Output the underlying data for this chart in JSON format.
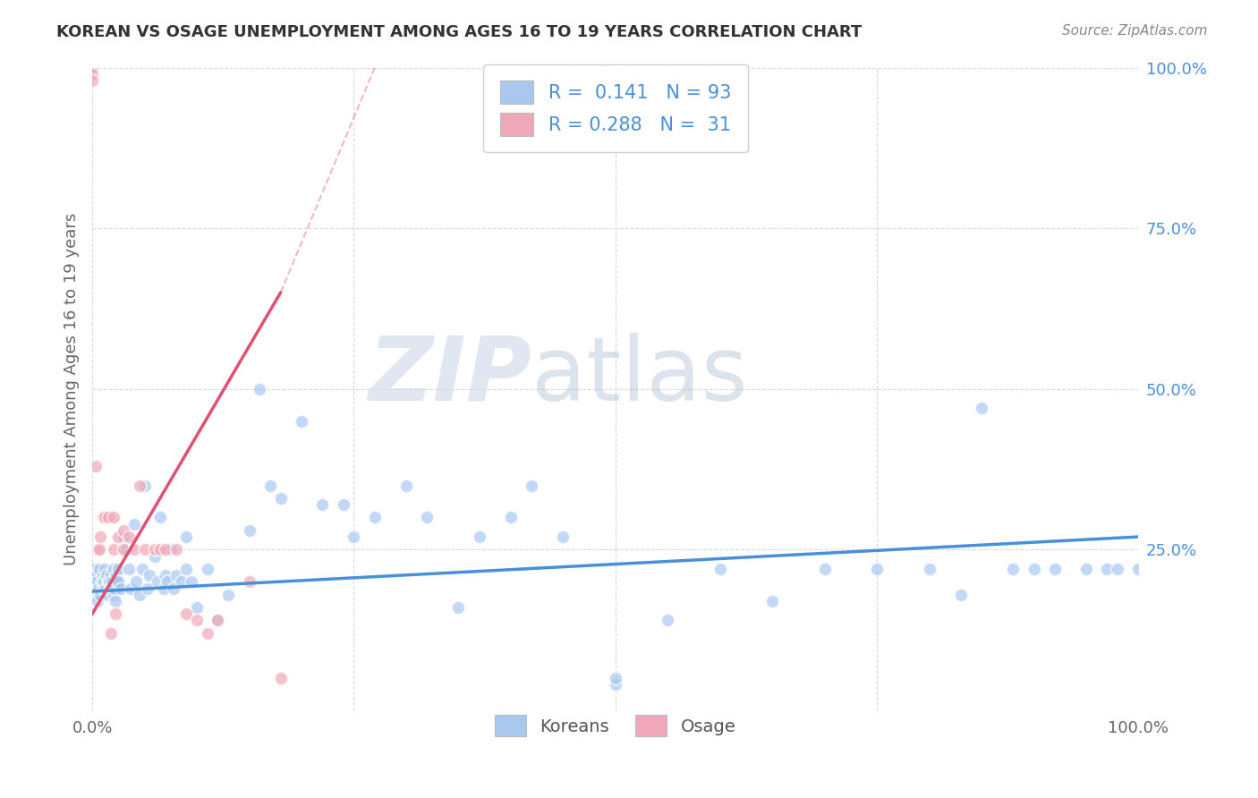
{
  "title": "KOREAN VS OSAGE UNEMPLOYMENT AMONG AGES 16 TO 19 YEARS CORRELATION CHART",
  "source": "Source: ZipAtlas.com",
  "ylabel": "Unemployment Among Ages 16 to 19 years",
  "xlabel": "",
  "xlim": [
    0,
    1.0
  ],
  "ylim": [
    0,
    1.0
  ],
  "korean_R": 0.141,
  "korean_N": 93,
  "osage_R": 0.288,
  "osage_N": 31,
  "korean_color": "#a8c8f0",
  "osage_color": "#f0a8b8",
  "korean_line_color": "#4a90d9",
  "osage_line_color": "#e05070",
  "watermark_zip": "ZIP",
  "watermark_atlas": "atlas",
  "background_color": "#ffffff",
  "grid_color": "#d8d8d8",
  "korean_x": [
    0.0,
    0.001,
    0.002,
    0.003,
    0.004,
    0.005,
    0.005,
    0.006,
    0.007,
    0.008,
    0.009,
    0.01,
    0.01,
    0.011,
    0.012,
    0.013,
    0.014,
    0.015,
    0.015,
    0.016,
    0.017,
    0.018,
    0.019,
    0.02,
    0.02,
    0.021,
    0.022,
    0.023,
    0.024,
    0.025,
    0.025,
    0.027,
    0.03,
    0.032,
    0.035,
    0.037,
    0.04,
    0.042,
    0.045,
    0.048,
    0.05,
    0.053,
    0.055,
    0.06,
    0.062,
    0.065,
    0.068,
    0.07,
    0.072,
    0.075,
    0.078,
    0.08,
    0.085,
    0.09,
    0.09,
    0.095,
    0.1,
    0.11,
    0.12,
    0.13,
    0.15,
    0.16,
    0.17,
    0.18,
    0.2,
    0.22,
    0.24,
    0.25,
    0.27,
    0.3,
    0.32,
    0.35,
    0.37,
    0.4,
    0.42,
    0.45,
    0.5,
    0.5,
    0.55,
    0.6,
    0.65,
    0.7,
    0.75,
    0.8,
    0.83,
    0.85,
    0.88,
    0.9,
    0.92,
    0.95,
    0.97,
    0.98,
    1.0
  ],
  "korean_y": [
    0.2,
    0.18,
    0.22,
    0.19,
    0.21,
    0.17,
    0.2,
    0.19,
    0.22,
    0.18,
    0.2,
    0.19,
    0.21,
    0.2,
    0.22,
    0.19,
    0.21,
    0.2,
    0.18,
    0.2,
    0.19,
    0.21,
    0.2,
    0.18,
    0.22,
    0.19,
    0.17,
    0.21,
    0.2,
    0.22,
    0.2,
    0.19,
    0.27,
    0.25,
    0.22,
    0.19,
    0.29,
    0.2,
    0.18,
    0.22,
    0.35,
    0.19,
    0.21,
    0.24,
    0.2,
    0.3,
    0.19,
    0.21,
    0.2,
    0.25,
    0.19,
    0.21,
    0.2,
    0.22,
    0.27,
    0.2,
    0.16,
    0.22,
    0.14,
    0.18,
    0.28,
    0.5,
    0.35,
    0.33,
    0.45,
    0.32,
    0.32,
    0.27,
    0.3,
    0.35,
    0.3,
    0.16,
    0.27,
    0.3,
    0.35,
    0.27,
    0.04,
    0.05,
    0.14,
    0.22,
    0.17,
    0.22,
    0.22,
    0.22,
    0.18,
    0.47,
    0.22,
    0.22,
    0.22,
    0.22,
    0.22,
    0.22,
    0.22
  ],
  "osage_x": [
    0.0,
    0.0,
    0.0,
    0.003,
    0.005,
    0.007,
    0.008,
    0.01,
    0.012,
    0.015,
    0.018,
    0.02,
    0.02,
    0.022,
    0.025,
    0.03,
    0.03,
    0.035,
    0.04,
    0.045,
    0.05,
    0.06,
    0.065,
    0.07,
    0.08,
    0.09,
    0.1,
    0.11,
    0.12,
    0.15,
    0.18
  ],
  "osage_y": [
    1.0,
    0.99,
    0.98,
    0.38,
    0.25,
    0.25,
    0.27,
    0.3,
    0.3,
    0.3,
    0.12,
    0.3,
    0.25,
    0.15,
    0.27,
    0.25,
    0.28,
    0.27,
    0.25,
    0.35,
    0.25,
    0.25,
    0.25,
    0.25,
    0.25,
    0.15,
    0.14,
    0.12,
    0.14,
    0.2,
    0.05
  ],
  "korean_trend_x": [
    0.0,
    1.0
  ],
  "korean_trend_y": [
    0.185,
    0.27
  ],
  "osage_trend_x": [
    0.0,
    0.18
  ],
  "osage_trend_y": [
    0.15,
    0.65
  ]
}
